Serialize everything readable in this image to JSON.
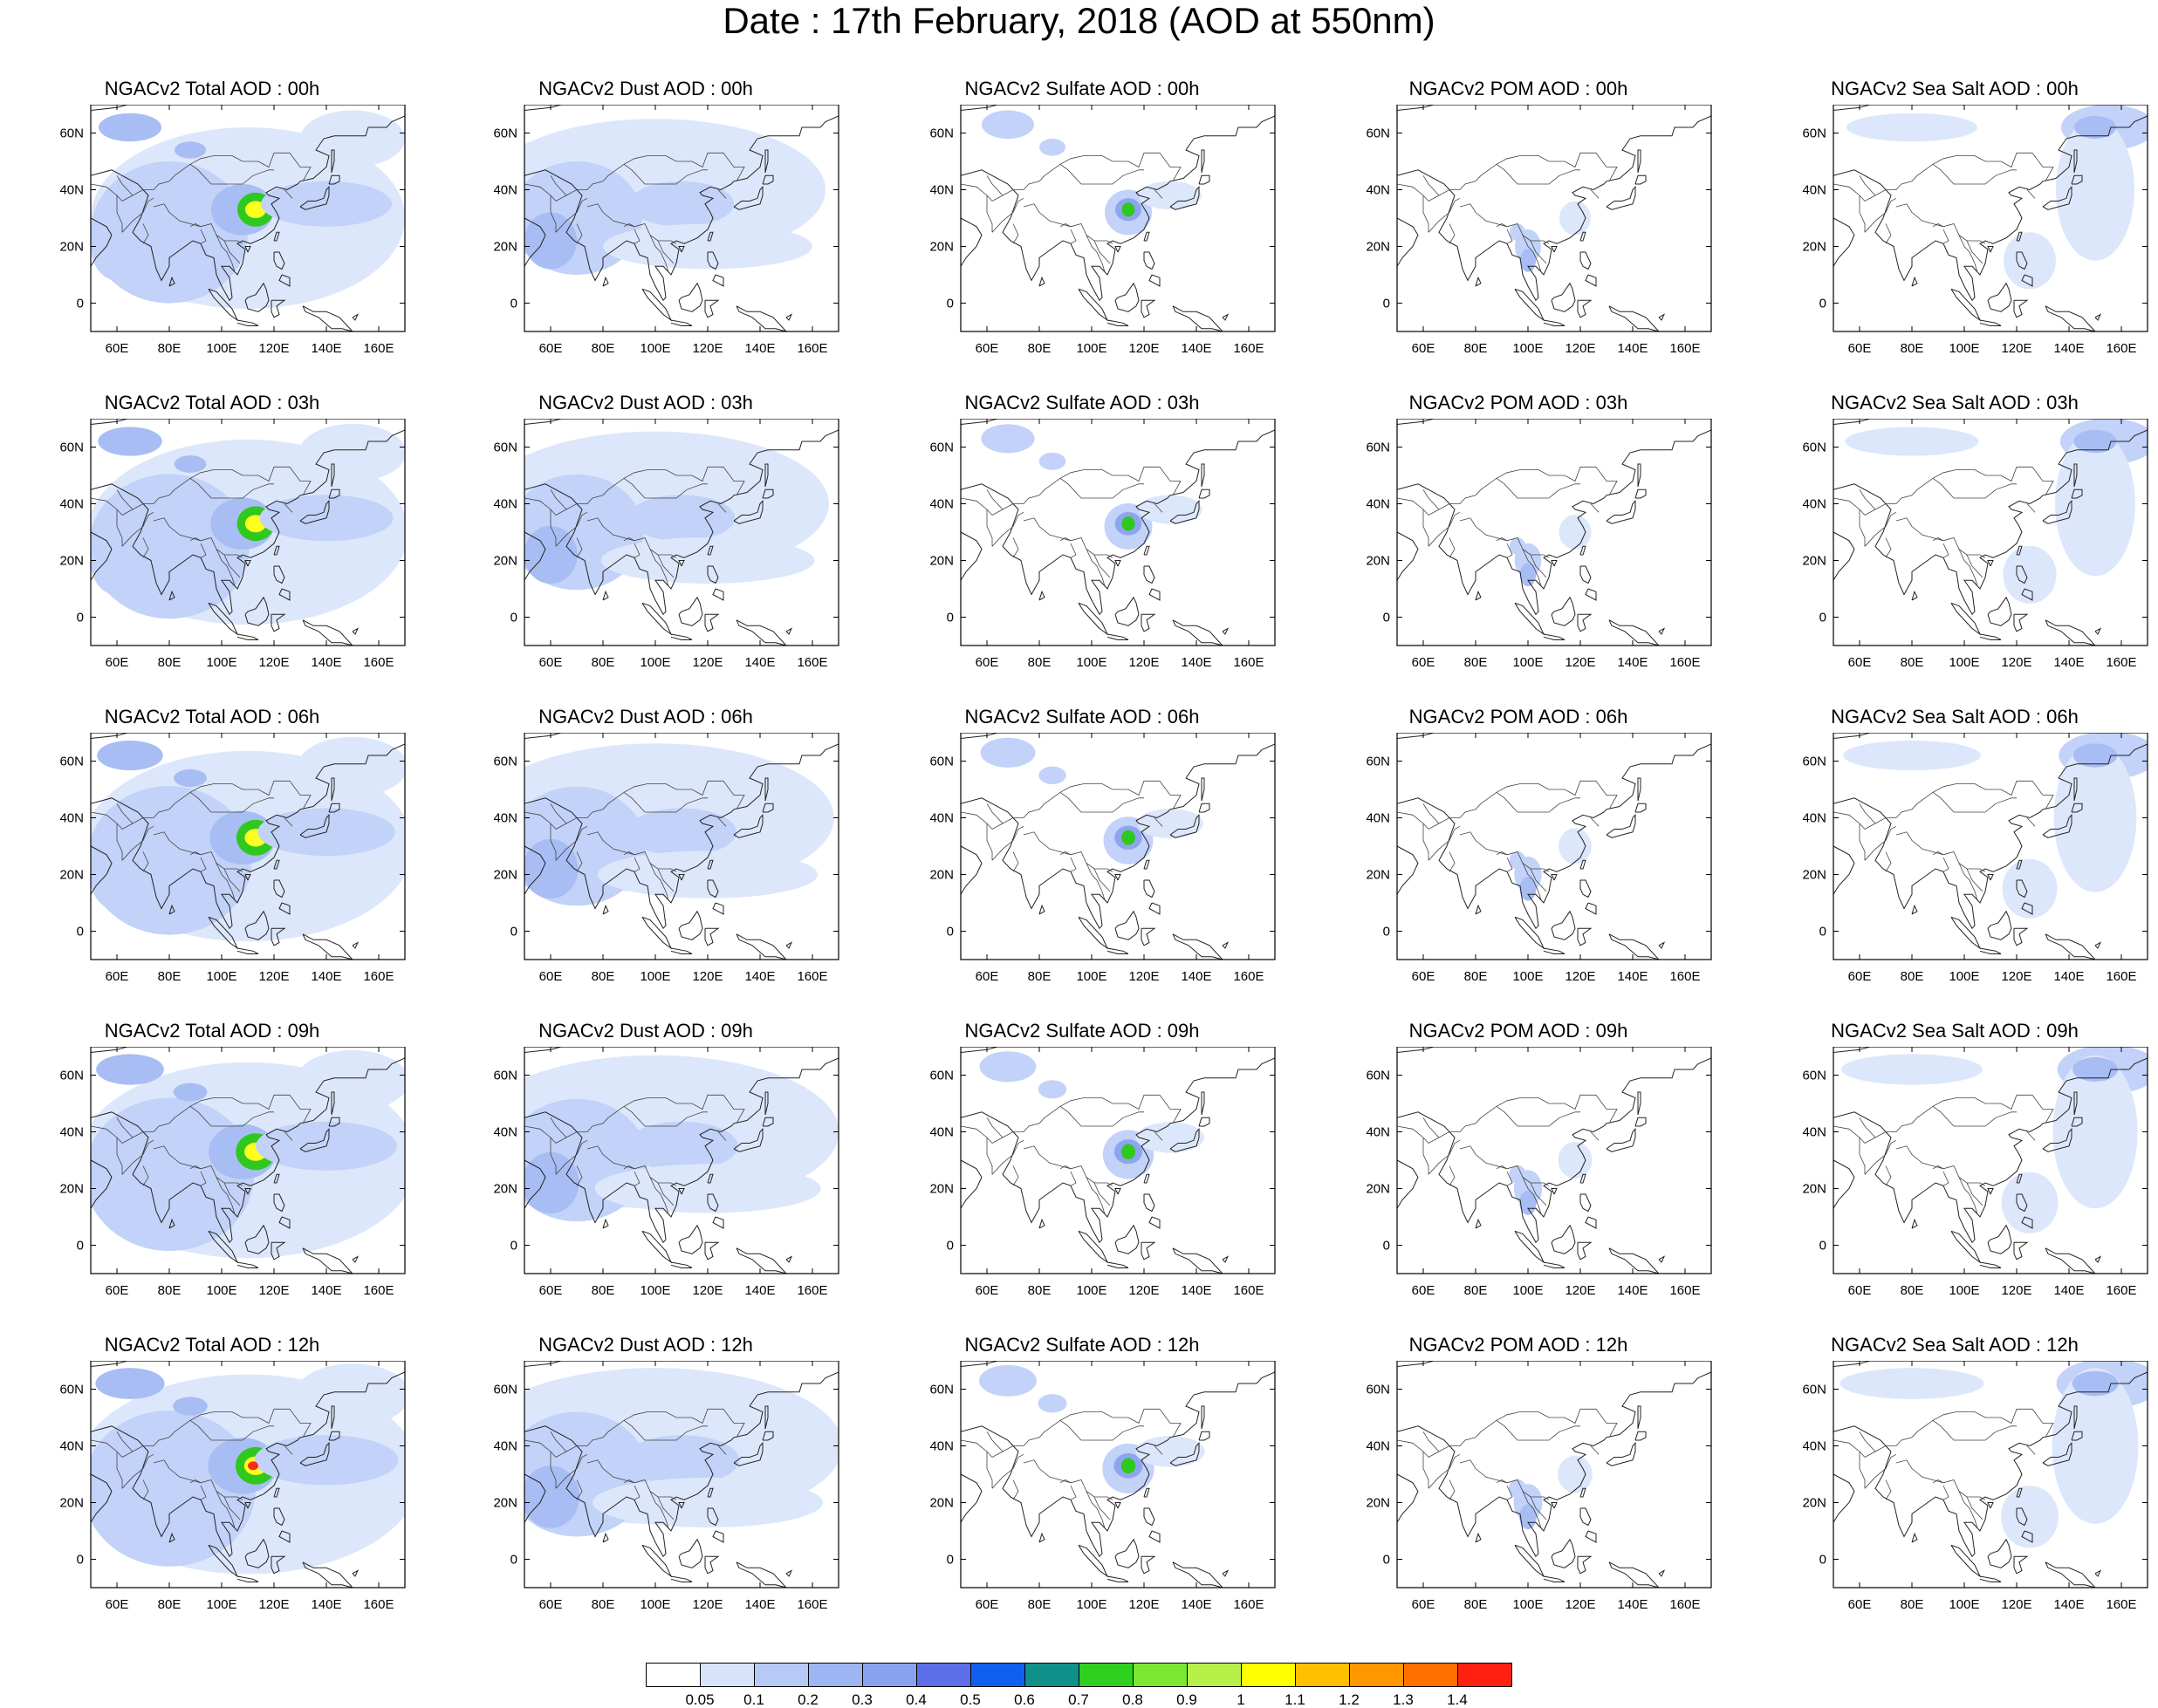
{
  "title": "Date : 17th February, 2018 (AOD at 550nm)",
  "panels": [
    [
      "NGACv2 Total AOD : 00h",
      "NGACv2 Dust AOD : 00h",
      "NGACv2 Sulfate AOD : 00h",
      "NGACv2 POM AOD : 00h",
      "NGACv2 Sea Salt AOD : 00h"
    ],
    [
      "NGACv2 Total AOD : 03h",
      "NGACv2 Dust AOD : 03h",
      "NGACv2 Sulfate AOD : 03h",
      "NGACv2 POM AOD : 03h",
      "NGACv2 Sea Salt AOD : 03h"
    ],
    [
      "NGACv2 Total AOD : 06h",
      "NGACv2 Dust AOD : 06h",
      "NGACv2 Sulfate AOD : 06h",
      "NGACv2 POM AOD : 06h",
      "NGACv2 Sea Salt AOD : 06h"
    ],
    [
      "NGACv2 Total AOD : 09h",
      "NGACv2 Dust AOD : 09h",
      "NGACv2 Sulfate AOD : 09h",
      "NGACv2 POM AOD : 09h",
      "NGACv2 Sea Salt  AOD : 09h"
    ],
    [
      "NGACv2 Total AOD  : 12h",
      "NGACv2 Dust AOD : 12h",
      "NGACv2 Sulfate AOD : 12h",
      "NGACv2 POM  AOD : 12h",
      "NGACv2 Sea Salt  AOD : 12h"
    ]
  ],
  "map_axes": {
    "lon_range": [
      50,
      170
    ],
    "lat_range": [
      -10,
      70
    ],
    "lon_ticks": [
      60,
      80,
      100,
      120,
      140,
      160
    ],
    "lat_ticks": [
      0,
      20,
      40,
      60
    ],
    "lon_tick_labels": [
      "60E",
      "80E",
      "100E",
      "120E",
      "140E",
      "160E"
    ],
    "lat_tick_labels": [
      "0",
      "20N",
      "40N",
      "60N"
    ]
  },
  "legend": {
    "labels": [
      "0.05",
      "0.1",
      "0.2",
      "0.3",
      "0.4",
      "0.5",
      "0.6",
      "0.7",
      "0.8",
      "0.9",
      "1",
      "1.1",
      "1.2",
      "1.3",
      "1.4"
    ],
    "colors": [
      "#ffffff",
      "#d7e3fb",
      "#b7c9f6",
      "#9db5f2",
      "#8aa2ee",
      "#5c6ee8",
      "#1060f0",
      "#10908a",
      "#30d020",
      "#7ae830",
      "#b8f048",
      "#ffff00",
      "#ffc000",
      "#ff9800",
      "#ff7000",
      "#ff2010"
    ]
  }
}
